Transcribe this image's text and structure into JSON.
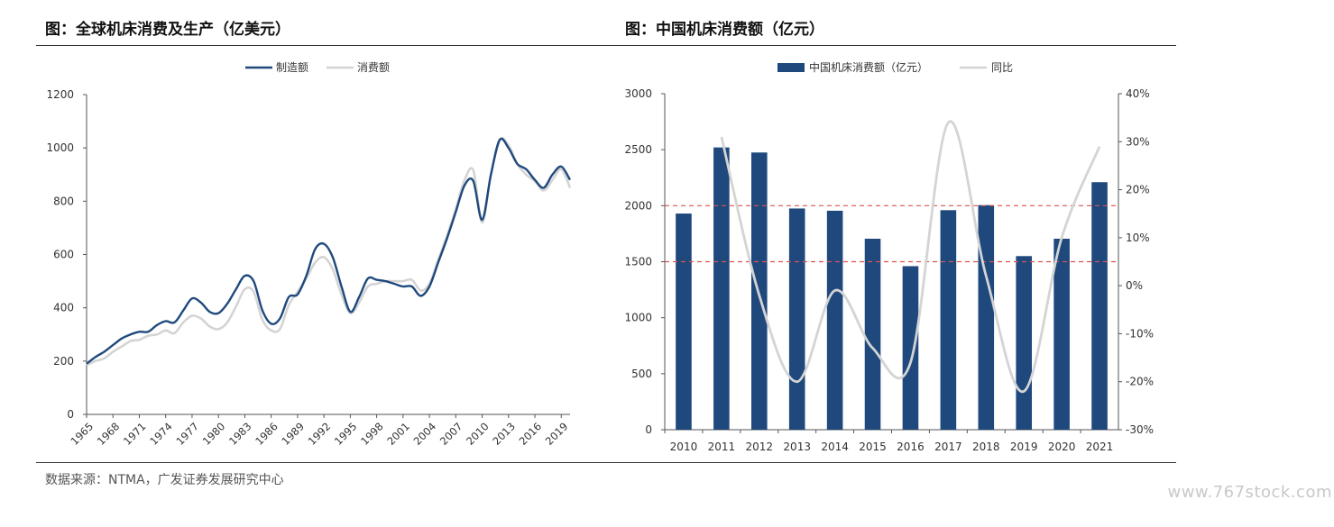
{
  "header": {
    "left_title": "图：全球机床消费及生产（亿美元）",
    "right_title": "图：中国机床消费额（亿元）"
  },
  "footer": {
    "source": "数据来源：NTMA，广发证券发展研究中心",
    "watermark": "www.767stock.com"
  },
  "colors": {
    "navy": "#1f497d",
    "light_gray": "#d4d4d4",
    "ref_red": "#d9534f",
    "axis": "#333333"
  },
  "chart_data": [
    {
      "type": "line",
      "title": "图：全球机床消费及生产（亿美元）",
      "x_ticks": [
        "1965",
        "1968",
        "1971",
        "1974",
        "1977",
        "1980",
        "1983",
        "1986",
        "1989",
        "1992",
        "1995",
        "1998",
        "2001",
        "2004",
        "2007",
        "2010",
        "2013",
        "2016",
        "2019"
      ],
      "yticks": [
        "0",
        "200",
        "400",
        "600",
        "800",
        "1000",
        "1200"
      ],
      "ylim": [
        0,
        1200
      ],
      "xlim": [
        1965,
        2020
      ],
      "legend": "top-center",
      "grid": false,
      "x": [
        1965,
        1966,
        1967,
        1968,
        1969,
        1970,
        1971,
        1972,
        1973,
        1974,
        1975,
        1976,
        1977,
        1978,
        1979,
        1980,
        1981,
        1982,
        1983,
        1984,
        1985,
        1986,
        1987,
        1988,
        1989,
        1990,
        1991,
        1992,
        1993,
        1994,
        1995,
        1996,
        1997,
        1998,
        1999,
        2000,
        2001,
        2002,
        2003,
        2004,
        2005,
        2006,
        2007,
        2008,
        2009,
        2010,
        2011,
        2012,
        2013,
        2014,
        2015,
        2016,
        2017,
        2018,
        2019,
        2020
      ],
      "series": [
        {
          "name": "制造额",
          "color": "#1f497d",
          "values": [
            190,
            215,
            235,
            260,
            285,
            300,
            310,
            310,
            335,
            350,
            345,
            390,
            435,
            420,
            385,
            380,
            415,
            470,
            520,
            500,
            390,
            340,
            360,
            440,
            450,
            520,
            620,
            640,
            590,
            480,
            385,
            440,
            510,
            505,
            500,
            490,
            480,
            480,
            445,
            480,
            570,
            660,
            760,
            860,
            875,
            730,
            900,
            1030,
            1000,
            940,
            920,
            880,
            850,
            900,
            930,
            880
          ]
        },
        {
          "name": "消费额",
          "color": "#d4d4d4",
          "values": [
            185,
            200,
            210,
            235,
            255,
            275,
            280,
            295,
            300,
            315,
            305,
            345,
            370,
            360,
            330,
            320,
            345,
            405,
            470,
            460,
            355,
            315,
            320,
            410,
            460,
            510,
            570,
            590,
            545,
            450,
            380,
            420,
            480,
            490,
            500,
            500,
            500,
            505,
            465,
            490,
            580,
            670,
            770,
            880,
            915,
            720,
            900,
            1030,
            1010,
            940,
            900,
            875,
            840,
            880,
            920,
            850
          ]
        }
      ]
    },
    {
      "type": "bar",
      "title": "图：中国机床消费额（亿元）",
      "categories": [
        "2010",
        "2011",
        "2012",
        "2013",
        "2014",
        "2015",
        "2016",
        "2017",
        "2018",
        "2019",
        "2020",
        "2021"
      ],
      "yticks": [
        "0",
        "500",
        "1000",
        "1500",
        "2000",
        "2500",
        "3000"
      ],
      "ylim": [
        0,
        3000
      ],
      "y2ticks": [
        "-30%",
        "-20%",
        "-10%",
        "0%",
        "10%",
        "20%",
        "30%",
        "40%"
      ],
      "y2lim": [
        -30,
        40
      ],
      "legend": "top-center",
      "reference_lines": [
        1500,
        2000
      ],
      "series": [
        {
          "name": "中国机床消费额（亿元）",
          "type": "bar",
          "color": "#1f497d",
          "values": [
            1930,
            2520,
            2475,
            1975,
            1955,
            1705,
            1460,
            1960,
            2005,
            1550,
            1705,
            2210
          ]
        },
        {
          "name": "同比",
          "type": "line",
          "axis": "right",
          "color": "#d4d4d4",
          "values": [
            null,
            31,
            -2,
            -20,
            -1,
            -13,
            -16,
            34,
            2,
            -22,
            10,
            29
          ]
        }
      ]
    }
  ]
}
